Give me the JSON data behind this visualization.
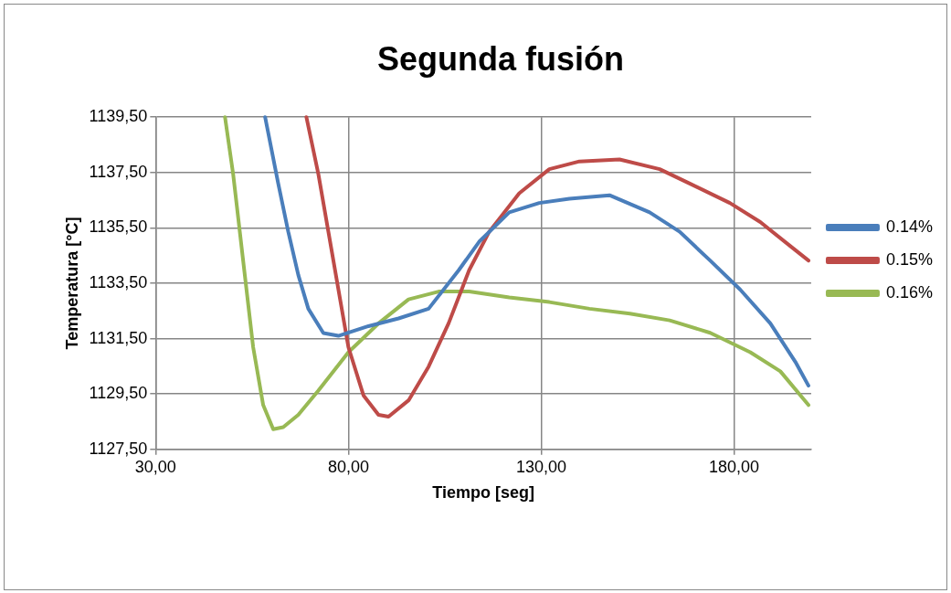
{
  "chart_data": {
    "type": "line",
    "title": "Segunda fusión",
    "xlabel": "Tiempo [seg]",
    "ylabel": "Temperatura [°C]",
    "xlim": [
      30,
      200
    ],
    "ylim": [
      1127.5,
      1139.5
    ],
    "xticks": [
      {
        "value": 30,
        "label": "30,00"
      },
      {
        "value": 80,
        "label": "80,00"
      },
      {
        "value": 130,
        "label": "130,00"
      },
      {
        "value": 180,
        "label": "180,00"
      }
    ],
    "yticks": [
      {
        "value": 1127.5,
        "label": "1127,50"
      },
      {
        "value": 1129.5,
        "label": "1129,50"
      },
      {
        "value": 1131.5,
        "label": "1131,50"
      },
      {
        "value": 1133.5,
        "label": "1133,50"
      },
      {
        "value": 1135.5,
        "label": "1135,50"
      },
      {
        "value": 1137.5,
        "label": "1137,50"
      },
      {
        "value": 1139.5,
        "label": "1139,50"
      }
    ],
    "grid": true,
    "legend": "right",
    "marker": "none",
    "line_style": "solid",
    "series": [
      {
        "name": "0.14%",
        "color": "#4a7ebb",
        "x": [
          58.4,
          61.8,
          64.4,
          67.0,
          69.6,
          73.5,
          77.4,
          85.2,
          93.0,
          100.8,
          108.6,
          113.9,
          121.7,
          129.5,
          137.3,
          147.7,
          158.1,
          165.9,
          173.8,
          181.6,
          189.4,
          195.9,
          199.3
        ],
        "values": [
          1139.5,
          1137.1,
          1135.36,
          1133.8,
          1132.58,
          1131.7,
          1131.6,
          1131.95,
          1132.23,
          1132.58,
          1133.97,
          1135.0,
          1136.06,
          1136.4,
          1136.55,
          1136.68,
          1136.06,
          1135.36,
          1134.32,
          1133.27,
          1132.05,
          1130.66,
          1129.8
        ]
      },
      {
        "name": "0.15%",
        "color": "#be4b48",
        "x": [
          69.1,
          72.2,
          76.1,
          80.0,
          83.9,
          87.8,
          90.4,
          95.6,
          100.8,
          106.0,
          111.3,
          116.5,
          124.3,
          132.1,
          139.9,
          150.3,
          160.7,
          168.5,
          178.9,
          186.8,
          194.6,
          199.3
        ],
        "values": [
          1139.5,
          1137.45,
          1134.32,
          1131.19,
          1129.45,
          1128.75,
          1128.68,
          1129.27,
          1130.49,
          1132.06,
          1133.97,
          1135.36,
          1136.75,
          1137.62,
          1137.9,
          1137.97,
          1137.62,
          1137.1,
          1136.4,
          1135.71,
          1134.84,
          1134.32
        ]
      },
      {
        "name": "0.16%",
        "color": "#98b954",
        "x": [
          48.0,
          50.1,
          52.7,
          55.3,
          57.9,
          60.5,
          63.1,
          67.0,
          72.2,
          80.0,
          87.8,
          95.6,
          103.4,
          111.3,
          121.7,
          132.1,
          142.5,
          153.0,
          163.3,
          173.8,
          184.2,
          192.0,
          199.3
        ],
        "values": [
          1139.5,
          1137.45,
          1134.32,
          1131.19,
          1129.1,
          1128.23,
          1128.3,
          1128.75,
          1129.62,
          1131.01,
          1132.05,
          1132.92,
          1133.2,
          1133.2,
          1132.99,
          1132.82,
          1132.58,
          1132.4,
          1132.16,
          1131.71,
          1131.01,
          1130.32,
          1129.1
        ]
      }
    ]
  }
}
